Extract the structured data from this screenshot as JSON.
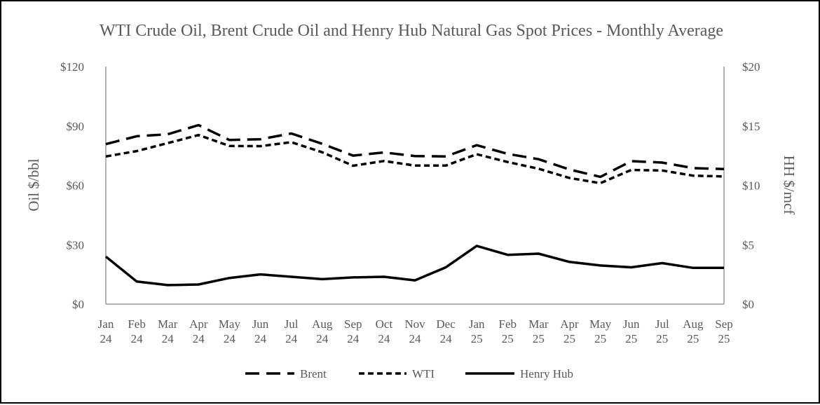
{
  "chart_data": {
    "type": "line",
    "title": "WTI Crude Oil, Brent Crude Oil and Henry Hub Natural Gas Spot Prices - Monthly Average",
    "ylabel_left": "Oil $/bbl",
    "ylabel_right": "HH $/mcf",
    "ylim_left": [
      0,
      120
    ],
    "ylim_right": [
      0,
      20
    ],
    "yticks_left": [
      "$0",
      "$30",
      "$60",
      "$90",
      "$120"
    ],
    "yticks_right": [
      "$0",
      "$5",
      "$10",
      "$15",
      "$20"
    ],
    "grid": false,
    "legend_position": "bottom",
    "categories": [
      [
        "Jan",
        "24"
      ],
      [
        "Feb",
        "24"
      ],
      [
        "Mar",
        "24"
      ],
      [
        "Apr",
        "24"
      ],
      [
        "May",
        "24"
      ],
      [
        "Jun",
        "24"
      ],
      [
        "Jul",
        "24"
      ],
      [
        "Aug",
        "24"
      ],
      [
        "Sep",
        "24"
      ],
      [
        "Oct",
        "24"
      ],
      [
        "Nov",
        "24"
      ],
      [
        "Dec",
        "24"
      ],
      [
        "Jan",
        "25"
      ],
      [
        "Feb",
        "25"
      ],
      [
        "Mar",
        "25"
      ],
      [
        "Apr",
        "25"
      ],
      [
        "May",
        "25"
      ],
      [
        "Jun",
        "25"
      ],
      [
        "Jul",
        "25"
      ],
      [
        "Aug",
        "25"
      ],
      [
        "Sep",
        "25"
      ]
    ],
    "series": [
      {
        "name": "Brent",
        "axis": "left",
        "style": "long-dash",
        "values": [
          80.8,
          84.8,
          85.8,
          90.4,
          82.9,
          83.3,
          86.2,
          81.0,
          75.0,
          76.6,
          74.8,
          74.6,
          80.3,
          75.9,
          73.2,
          68.0,
          64.3,
          72.2,
          71.5,
          68.7,
          68.2
        ]
      },
      {
        "name": "WTI",
        "axis": "left",
        "style": "short-dash",
        "values": [
          74.6,
          77.3,
          81.3,
          85.4,
          79.9,
          79.8,
          81.8,
          76.7,
          69.9,
          72.3,
          70.0,
          70.0,
          75.7,
          71.8,
          68.4,
          63.7,
          61.1,
          67.8,
          67.5,
          64.9,
          64.5
        ]
      },
      {
        "name": "Henry Hub",
        "axis": "right",
        "style": "solid",
        "values": [
          4.0,
          1.9,
          1.6,
          1.65,
          2.2,
          2.5,
          2.3,
          2.1,
          2.25,
          2.3,
          2.0,
          3.1,
          4.9,
          4.15,
          4.25,
          3.55,
          3.25,
          3.1,
          3.45,
          3.05,
          3.05
        ]
      }
    ]
  }
}
